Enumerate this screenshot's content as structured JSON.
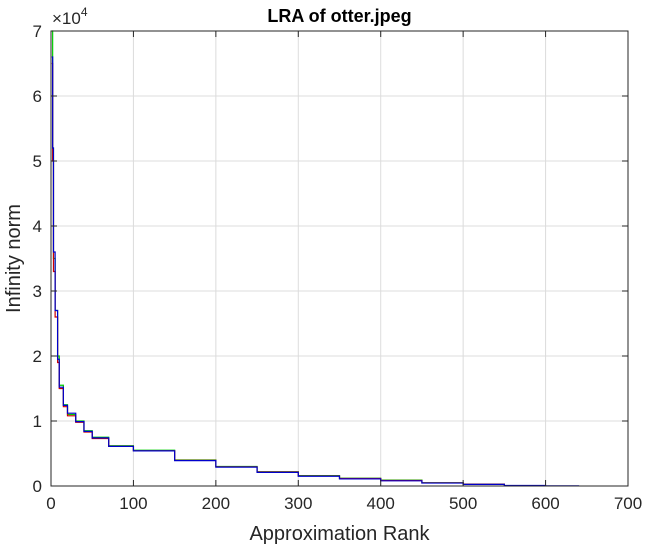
{
  "chart_data": {
    "type": "line",
    "title": "LRA of otter.jpeg",
    "xlabel": "Approximation Rank",
    "ylabel": "Infinity norm",
    "xlim": [
      0,
      700
    ],
    "ylim": [
      0,
      70000
    ],
    "y_exponent_base": "×10",
    "y_exponent_power": "4",
    "xticks": [
      "0",
      "100",
      "200",
      "300",
      "400",
      "500",
      "600",
      "700"
    ],
    "yticks": [
      "0",
      "1",
      "2",
      "3",
      "4",
      "5",
      "6",
      "7"
    ],
    "xtick_values": [
      0,
      100,
      200,
      300,
      400,
      500,
      600,
      700
    ],
    "ytick_values": [
      0,
      10000,
      20000,
      30000,
      40000,
      50000,
      60000,
      70000
    ],
    "grid": true,
    "series": [
      {
        "color": "#00cc00",
        "x": [
          1,
          2,
          3,
          5,
          8,
          10,
          15,
          20,
          30,
          40,
          50,
          70,
          100,
          150,
          200,
          250,
          300,
          350,
          400,
          450,
          500,
          550
        ],
        "y": [
          70000,
          52000,
          35000,
          27000,
          20000,
          15500,
          12500,
          11000,
          10000,
          8500,
          7500,
          6200,
          5500,
          4000,
          3000,
          2200,
          1600,
          1200,
          900,
          500,
          300,
          100
        ]
      },
      {
        "color": "#cc0000",
        "x": [
          1,
          2,
          3,
          5,
          8,
          10,
          15,
          20,
          30,
          40,
          50,
          70,
          100,
          150,
          200,
          250,
          300,
          350,
          400,
          450,
          500,
          550
        ],
        "y": [
          65000,
          50000,
          33000,
          26000,
          19000,
          15000,
          12200,
          10800,
          9800,
          8300,
          7300,
          6100,
          5400,
          3950,
          2950,
          2150,
          1550,
          1150,
          850,
          480,
          280,
          90
        ]
      },
      {
        "color": "#0000cc",
        "x": [
          1,
          2,
          3,
          5,
          8,
          10,
          15,
          20,
          30,
          40,
          50,
          70,
          100,
          150,
          200,
          250,
          300,
          350,
          400,
          450,
          500,
          550,
          600,
          640
        ],
        "y": [
          66000,
          52000,
          36000,
          27000,
          19500,
          15200,
          12400,
          11200,
          9900,
          8400,
          7400,
          6100,
          5400,
          3900,
          2900,
          2100,
          1500,
          1100,
          800,
          450,
          250,
          80,
          20,
          0
        ]
      }
    ]
  }
}
